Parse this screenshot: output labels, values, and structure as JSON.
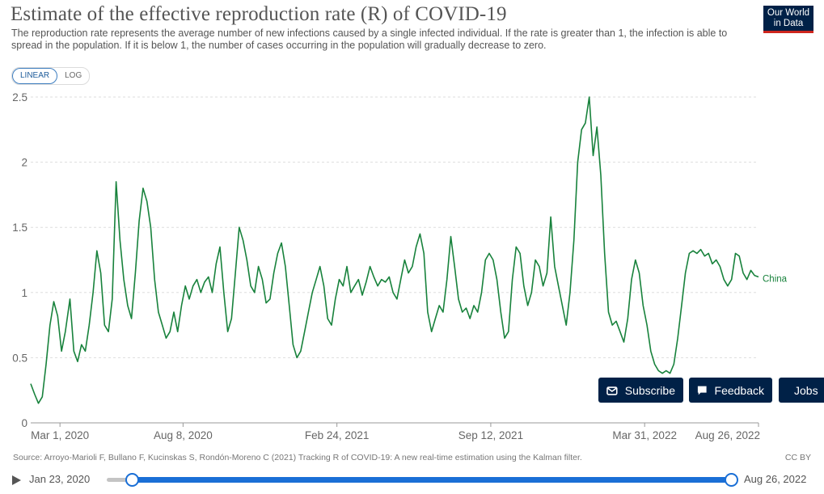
{
  "header": {
    "title": "Estimate of the effective reproduction rate (R) of COVID-19",
    "subtitle": "The reproduction rate represents the average number of new infections caused by a single infected individual. If the rate is greater than 1, the infection is able to spread in the population. If it is below 1, the number of cases occurring in the population will gradually decrease to zero.",
    "logo_line1": "Our World",
    "logo_line2": "in Data"
  },
  "scale_toggle": {
    "linear": "LINEAR",
    "log": "LOG",
    "active": "LINEAR"
  },
  "chart_data": {
    "type": "line",
    "title": "Estimate of the effective reproduction rate (R) of COVID-19",
    "xlabel": "",
    "ylabel": "",
    "ylim": [
      0,
      2.5
    ],
    "yticks": [
      0,
      0.5,
      1,
      1.5,
      2,
      2.5
    ],
    "ytick_labels": [
      "0",
      "0.5",
      "1",
      "1.5",
      "2",
      "2.5"
    ],
    "grid": true,
    "x_range": [
      "2020-01-23",
      "2022-08-26"
    ],
    "xticks": [
      {
        "date": "2020-03-01",
        "label": "Mar 1, 2020"
      },
      {
        "date": "2020-08-08",
        "label": "Aug 8, 2020"
      },
      {
        "date": "2021-02-24",
        "label": "Feb 24, 2021"
      },
      {
        "date": "2021-09-12",
        "label": "Sep 12, 2021"
      },
      {
        "date": "2022-03-31",
        "label": "Mar 31, 2022"
      },
      {
        "date": "2022-08-26",
        "label": "Aug 26, 2022"
      }
    ],
    "series": [
      {
        "name": "China",
        "color": "#18823c",
        "points": [
          [
            "2020-01-23",
            0.3
          ],
          [
            "2020-01-28",
            0.22
          ],
          [
            "2020-02-02",
            0.15
          ],
          [
            "2020-02-07",
            0.2
          ],
          [
            "2020-02-12",
            0.45
          ],
          [
            "2020-02-17",
            0.75
          ],
          [
            "2020-02-22",
            0.93
          ],
          [
            "2020-02-27",
            0.82
          ],
          [
            "2020-03-03",
            0.55
          ],
          [
            "2020-03-08",
            0.7
          ],
          [
            "2020-03-14",
            0.95
          ],
          [
            "2020-03-19",
            0.55
          ],
          [
            "2020-03-24",
            0.47
          ],
          [
            "2020-03-29",
            0.6
          ],
          [
            "2020-04-03",
            0.55
          ],
          [
            "2020-04-08",
            0.75
          ],
          [
            "2020-04-13",
            1.0
          ],
          [
            "2020-04-18",
            1.32
          ],
          [
            "2020-04-23",
            1.15
          ],
          [
            "2020-04-28",
            0.75
          ],
          [
            "2020-05-03",
            0.7
          ],
          [
            "2020-05-08",
            0.95
          ],
          [
            "2020-05-13",
            1.85
          ],
          [
            "2020-05-18",
            1.4
          ],
          [
            "2020-05-23",
            1.1
          ],
          [
            "2020-05-28",
            0.9
          ],
          [
            "2020-06-02",
            0.8
          ],
          [
            "2020-06-07",
            1.15
          ],
          [
            "2020-06-12",
            1.55
          ],
          [
            "2020-06-17",
            1.8
          ],
          [
            "2020-06-22",
            1.7
          ],
          [
            "2020-06-27",
            1.5
          ],
          [
            "2020-07-02",
            1.1
          ],
          [
            "2020-07-07",
            0.85
          ],
          [
            "2020-07-12",
            0.75
          ],
          [
            "2020-07-17",
            0.65
          ],
          [
            "2020-07-22",
            0.7
          ],
          [
            "2020-07-27",
            0.85
          ],
          [
            "2020-08-01",
            0.7
          ],
          [
            "2020-08-06",
            0.9
          ],
          [
            "2020-08-11",
            1.05
          ],
          [
            "2020-08-16",
            0.95
          ],
          [
            "2020-08-21",
            1.05
          ],
          [
            "2020-08-26",
            1.1
          ],
          [
            "2020-08-31",
            1.0
          ],
          [
            "2020-09-05",
            1.08
          ],
          [
            "2020-09-10",
            1.12
          ],
          [
            "2020-09-15",
            1.0
          ],
          [
            "2020-09-20",
            1.22
          ],
          [
            "2020-09-25",
            1.35
          ],
          [
            "2020-09-30",
            1.0
          ],
          [
            "2020-10-05",
            0.7
          ],
          [
            "2020-10-10",
            0.8
          ],
          [
            "2020-10-15",
            1.15
          ],
          [
            "2020-10-20",
            1.5
          ],
          [
            "2020-10-25",
            1.4
          ],
          [
            "2020-10-30",
            1.25
          ],
          [
            "2020-11-04",
            1.05
          ],
          [
            "2020-11-09",
            1.0
          ],
          [
            "2020-11-14",
            1.2
          ],
          [
            "2020-11-19",
            1.1
          ],
          [
            "2020-11-24",
            0.92
          ],
          [
            "2020-11-29",
            0.95
          ],
          [
            "2020-12-04",
            1.15
          ],
          [
            "2020-12-09",
            1.3
          ],
          [
            "2020-12-14",
            1.38
          ],
          [
            "2020-12-19",
            1.2
          ],
          [
            "2020-12-24",
            0.9
          ],
          [
            "2020-12-29",
            0.6
          ],
          [
            "2021-01-03",
            0.5
          ],
          [
            "2021-01-08",
            0.55
          ],
          [
            "2021-01-13",
            0.7
          ],
          [
            "2021-01-18",
            0.85
          ],
          [
            "2021-01-23",
            1.0
          ],
          [
            "2021-01-28",
            1.1
          ],
          [
            "2021-02-02",
            1.2
          ],
          [
            "2021-02-07",
            1.05
          ],
          [
            "2021-02-12",
            0.8
          ],
          [
            "2021-02-17",
            0.75
          ],
          [
            "2021-02-22",
            0.95
          ],
          [
            "2021-02-27",
            1.1
          ],
          [
            "2021-03-04",
            1.05
          ],
          [
            "2021-03-09",
            1.2
          ],
          [
            "2021-03-14",
            1.0
          ],
          [
            "2021-03-19",
            1.05
          ],
          [
            "2021-03-24",
            1.1
          ],
          [
            "2021-03-29",
            0.98
          ],
          [
            "2021-04-03",
            1.08
          ],
          [
            "2021-04-08",
            1.2
          ],
          [
            "2021-04-13",
            1.12
          ],
          [
            "2021-04-18",
            1.05
          ],
          [
            "2021-04-23",
            1.1
          ],
          [
            "2021-04-28",
            1.08
          ],
          [
            "2021-05-03",
            1.12
          ],
          [
            "2021-05-08",
            1.0
          ],
          [
            "2021-05-13",
            0.95
          ],
          [
            "2021-05-18",
            1.1
          ],
          [
            "2021-05-23",
            1.25
          ],
          [
            "2021-05-28",
            1.15
          ],
          [
            "2021-06-02",
            1.2
          ],
          [
            "2021-06-07",
            1.35
          ],
          [
            "2021-06-12",
            1.45
          ],
          [
            "2021-06-17",
            1.3
          ],
          [
            "2021-06-22",
            0.85
          ],
          [
            "2021-06-27",
            0.7
          ],
          [
            "2021-07-02",
            0.8
          ],
          [
            "2021-07-07",
            0.9
          ],
          [
            "2021-07-12",
            0.85
          ],
          [
            "2021-07-17",
            1.1
          ],
          [
            "2021-07-22",
            1.43
          ],
          [
            "2021-07-27",
            1.2
          ],
          [
            "2021-08-01",
            0.95
          ],
          [
            "2021-08-06",
            0.85
          ],
          [
            "2021-08-11",
            0.88
          ],
          [
            "2021-08-16",
            0.8
          ],
          [
            "2021-08-21",
            0.9
          ],
          [
            "2021-08-26",
            0.85
          ],
          [
            "2021-08-31",
            1.0
          ],
          [
            "2021-09-05",
            1.25
          ],
          [
            "2021-09-10",
            1.3
          ],
          [
            "2021-09-15",
            1.25
          ],
          [
            "2021-09-20",
            1.1
          ],
          [
            "2021-09-25",
            0.85
          ],
          [
            "2021-09-30",
            0.65
          ],
          [
            "2021-10-05",
            0.7
          ],
          [
            "2021-10-10",
            1.1
          ],
          [
            "2021-10-15",
            1.35
          ],
          [
            "2021-10-20",
            1.3
          ],
          [
            "2021-10-25",
            1.05
          ],
          [
            "2021-10-30",
            0.9
          ],
          [
            "2021-11-04",
            1.0
          ],
          [
            "2021-11-09",
            1.25
          ],
          [
            "2021-11-14",
            1.2
          ],
          [
            "2021-11-19",
            1.05
          ],
          [
            "2021-11-24",
            1.15
          ],
          [
            "2021-11-29",
            1.58
          ],
          [
            "2021-12-04",
            1.2
          ],
          [
            "2021-12-09",
            1.05
          ],
          [
            "2021-12-14",
            0.9
          ],
          [
            "2021-12-19",
            0.75
          ],
          [
            "2021-12-24",
            1.0
          ],
          [
            "2021-12-29",
            1.4
          ],
          [
            "2022-01-03",
            2.0
          ],
          [
            "2022-01-08",
            2.25
          ],
          [
            "2022-01-13",
            2.3
          ],
          [
            "2022-01-18",
            2.5
          ],
          [
            "2022-01-23",
            2.05
          ],
          [
            "2022-01-28",
            2.27
          ],
          [
            "2022-02-02",
            1.9
          ],
          [
            "2022-02-07",
            1.3
          ],
          [
            "2022-02-12",
            0.85
          ],
          [
            "2022-02-17",
            0.75
          ],
          [
            "2022-02-22",
            0.78
          ],
          [
            "2022-02-27",
            0.7
          ],
          [
            "2022-03-04",
            0.62
          ],
          [
            "2022-03-09",
            0.8
          ],
          [
            "2022-03-14",
            1.1
          ],
          [
            "2022-03-19",
            1.25
          ],
          [
            "2022-03-24",
            1.15
          ],
          [
            "2022-03-29",
            0.9
          ],
          [
            "2022-04-03",
            0.75
          ],
          [
            "2022-04-08",
            0.55
          ],
          [
            "2022-04-13",
            0.45
          ],
          [
            "2022-04-18",
            0.4
          ],
          [
            "2022-04-23",
            0.38
          ],
          [
            "2022-04-28",
            0.4
          ],
          [
            "2022-05-03",
            0.38
          ],
          [
            "2022-05-08",
            0.45
          ],
          [
            "2022-05-13",
            0.65
          ],
          [
            "2022-05-18",
            0.9
          ],
          [
            "2022-05-23",
            1.15
          ],
          [
            "2022-05-28",
            1.3
          ],
          [
            "2022-06-02",
            1.32
          ],
          [
            "2022-06-07",
            1.3
          ],
          [
            "2022-06-12",
            1.33
          ],
          [
            "2022-06-17",
            1.28
          ],
          [
            "2022-06-22",
            1.3
          ],
          [
            "2022-06-27",
            1.22
          ],
          [
            "2022-07-02",
            1.25
          ],
          [
            "2022-07-07",
            1.2
          ],
          [
            "2022-07-12",
            1.1
          ],
          [
            "2022-07-17",
            1.05
          ],
          [
            "2022-07-22",
            1.1
          ],
          [
            "2022-07-27",
            1.3
          ],
          [
            "2022-08-01",
            1.28
          ],
          [
            "2022-08-06",
            1.15
          ],
          [
            "2022-08-11",
            1.1
          ],
          [
            "2022-08-16",
            1.17
          ],
          [
            "2022-08-21",
            1.13
          ],
          [
            "2022-08-26",
            1.12
          ]
        ]
      }
    ]
  },
  "overlay_buttons": {
    "subscribe": "Subscribe",
    "feedback": "Feedback",
    "jobs": "Jobs"
  },
  "footer": {
    "source": "Source: Arroyo-Marioli F, Bullano F, Kucinskas S, Rondón-Moreno C (2021) Tracking R of COVID-19: A new real-time estimation using the Kalman filter.",
    "license": "CC BY"
  },
  "timeline": {
    "start_label": "Jan 23, 2020",
    "end_label": "Aug 26, 2022"
  }
}
